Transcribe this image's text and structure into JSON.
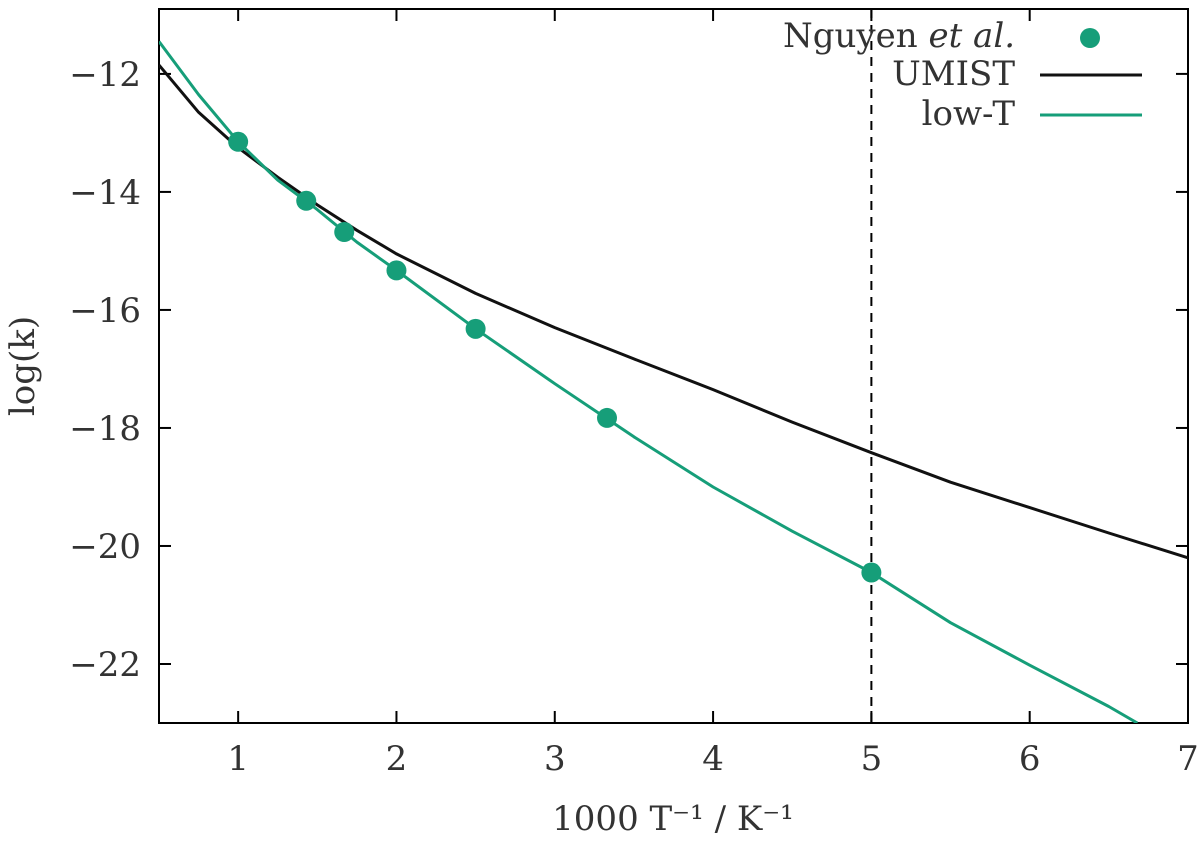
{
  "chart_data": {
    "type": "line",
    "title": "",
    "xlabel": "1000 T⁻¹ / K⁻¹",
    "ylabel": "log(k)",
    "xlim": [
      0.5,
      7
    ],
    "ylim": [
      -23,
      -10.9
    ],
    "x_ticks": [
      1,
      2,
      3,
      4,
      5,
      6,
      7
    ],
    "x_tick_labels": [
      "1",
      "2",
      "3",
      "4",
      "5",
      "6",
      "7"
    ],
    "y_ticks": [
      -12,
      -14,
      -16,
      -18,
      -20,
      -22
    ],
    "y_tick_labels": [
      "−12",
      "−14",
      "−16",
      "−18",
      "−20",
      "−22"
    ],
    "grid": false,
    "legend_position": "top-right",
    "vertical_reference_line": {
      "x": 5,
      "style": "dashed",
      "color": "#000000"
    },
    "series": [
      {
        "name": "Nguyen et al.",
        "name_main": "Nguyen ",
        "name_italic": "et al.",
        "kind": "scatter",
        "color": "#169e79",
        "x": [
          1.0,
          1.43,
          1.67,
          2.0,
          2.5,
          3.33,
          5.0
        ],
        "y": [
          -13.15,
          -14.15,
          -14.68,
          -15.33,
          -16.32,
          -17.83,
          -20.45
        ]
      },
      {
        "name": "UMIST",
        "kind": "line",
        "color": "#111111",
        "x": [
          0.5,
          0.75,
          1.0,
          1.25,
          1.5,
          1.75,
          2.0,
          2.5,
          3.0,
          3.5,
          4.0,
          4.5,
          5.0,
          5.5,
          6.0,
          6.5,
          7.0
        ],
        "y": [
          -11.85,
          -12.65,
          -13.25,
          -13.75,
          -14.22,
          -14.65,
          -15.05,
          -15.72,
          -16.3,
          -16.83,
          -17.35,
          -17.9,
          -18.42,
          -18.92,
          -19.35,
          -19.78,
          -20.2
        ]
      },
      {
        "name": "low-T",
        "kind": "line",
        "color": "#169e79",
        "x": [
          0.5,
          0.75,
          1.0,
          1.25,
          1.5,
          1.75,
          2.0,
          2.5,
          3.0,
          3.5,
          4.0,
          4.5,
          5.0,
          5.5,
          6.0,
          6.5,
          6.68
        ],
        "y": [
          -11.45,
          -12.35,
          -13.15,
          -13.8,
          -14.3,
          -14.85,
          -15.33,
          -16.32,
          -17.25,
          -18.15,
          -19.0,
          -19.75,
          -20.45,
          -21.3,
          -22.02,
          -22.72,
          -23.0
        ]
      }
    ]
  }
}
